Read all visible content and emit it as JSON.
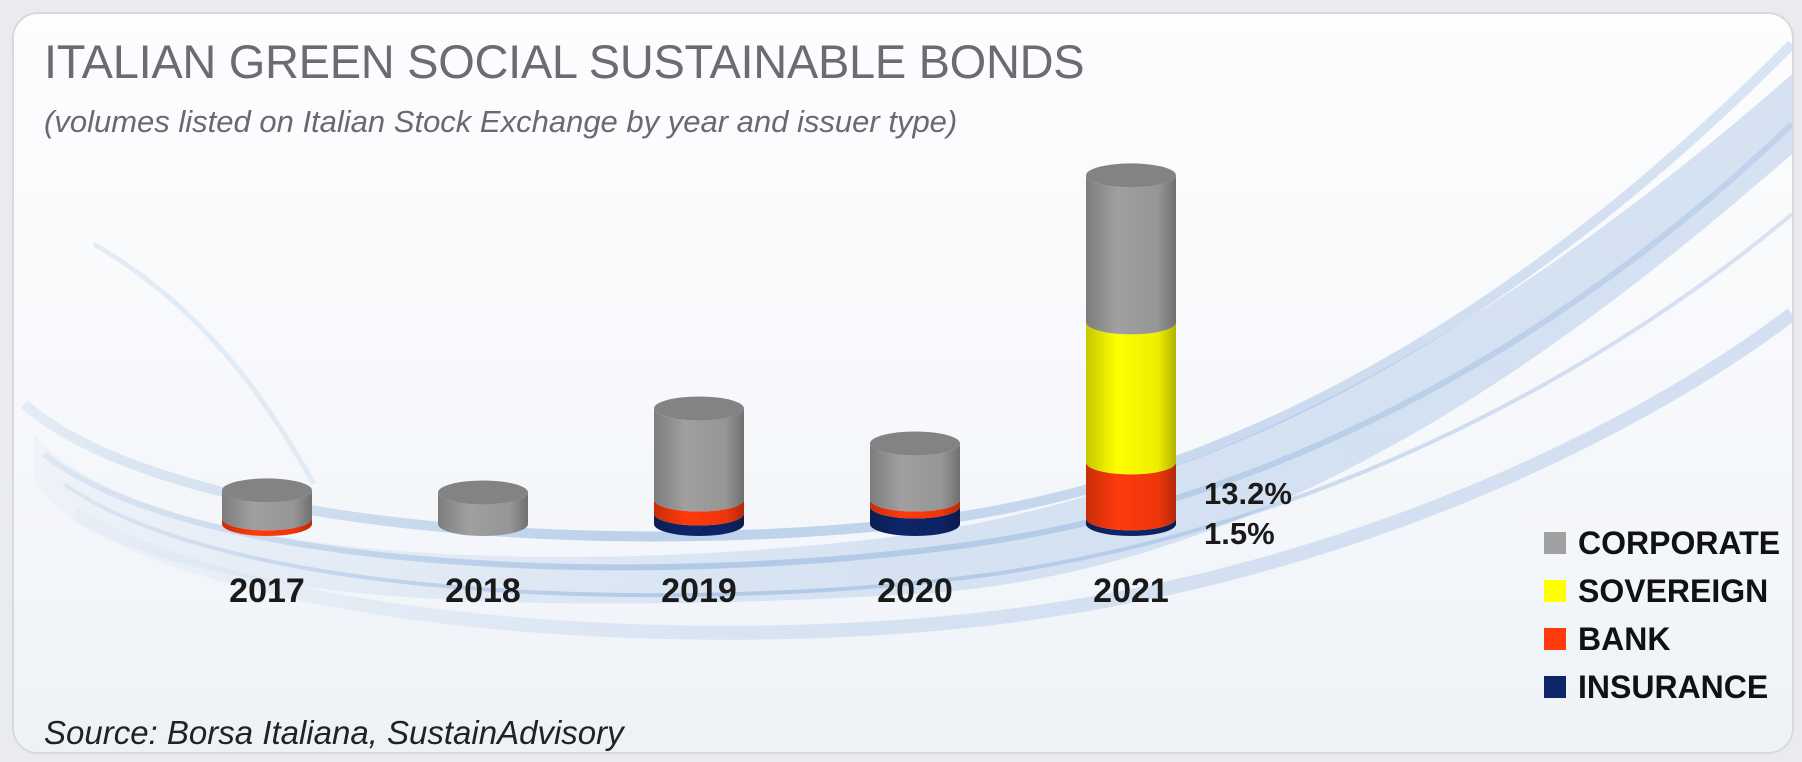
{
  "title": "ITALIAN GREEN SOCIAL SUSTAINABLE BONDS",
  "subtitle": "(volumes listed on Italian Stock Exchange by year and issuer type)",
  "source": "Source: Borsa Italiana, SustainAdvisory",
  "chart_data": {
    "type": "bar",
    "stacked": true,
    "style": "3d-cylinder",
    "categories": [
      "2017",
      "2018",
      "2019",
      "2020",
      "2021"
    ],
    "series": [
      {
        "name": "INSURANCE",
        "color": "#0d2669",
        "values": [
          0,
          0,
          0.15,
          0.25,
          0.08
        ]
      },
      {
        "name": "BANK",
        "color": "#ff3a0c",
        "values": [
          0.08,
          0,
          0.2,
          0.1,
          0.8
        ]
      },
      {
        "name": "SOVEREIGN",
        "color": "#ffff00",
        "values": [
          0,
          0,
          0,
          0,
          2.0
        ]
      },
      {
        "name": "CORPORATE",
        "color": "#a0a0a0",
        "values": [
          0.4,
          0.45,
          1.3,
          0.8,
          2.1
        ]
      }
    ],
    "annotations": [
      {
        "category": "2021",
        "text": "13.2%",
        "series": "BANK"
      },
      {
        "category": "2021",
        "text": "1.5%",
        "series": "INSURANCE"
      }
    ],
    "legend_position": "bottom-right",
    "legend_order": [
      "CORPORATE",
      "SOVEREIGN",
      "BANK",
      "INSURANCE"
    ],
    "grid": false,
    "yaxis_visible": false
  }
}
